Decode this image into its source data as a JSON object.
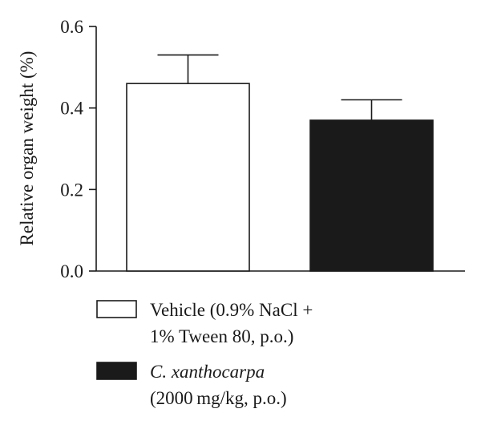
{
  "chart_data": {
    "type": "bar",
    "title": "",
    "xlabel": "",
    "ylabel": "Relative organ weight (%)",
    "ylim": [
      0,
      0.6
    ],
    "yticks": [
      "0.0",
      "0.2",
      "0.4",
      "0.6"
    ],
    "grid": false,
    "legend_position": "bottom",
    "series": [
      {
        "name_lines": [
          "Vehicle (0.9% NaCl +",
          "1% Tween 80, p.o.)"
        ],
        "value": 0.46,
        "error": 0.07,
        "fill": "#ffffff",
        "stroke": "#1a1a1a"
      },
      {
        "name_lines": [
          "C. xanthocarpa",
          "(2000 mg/kg, p.o.)"
        ],
        "name_italic_line": 0,
        "value": 0.37,
        "error": 0.05,
        "fill": "#1a1a1a",
        "stroke": "#1a1a1a"
      }
    ]
  }
}
